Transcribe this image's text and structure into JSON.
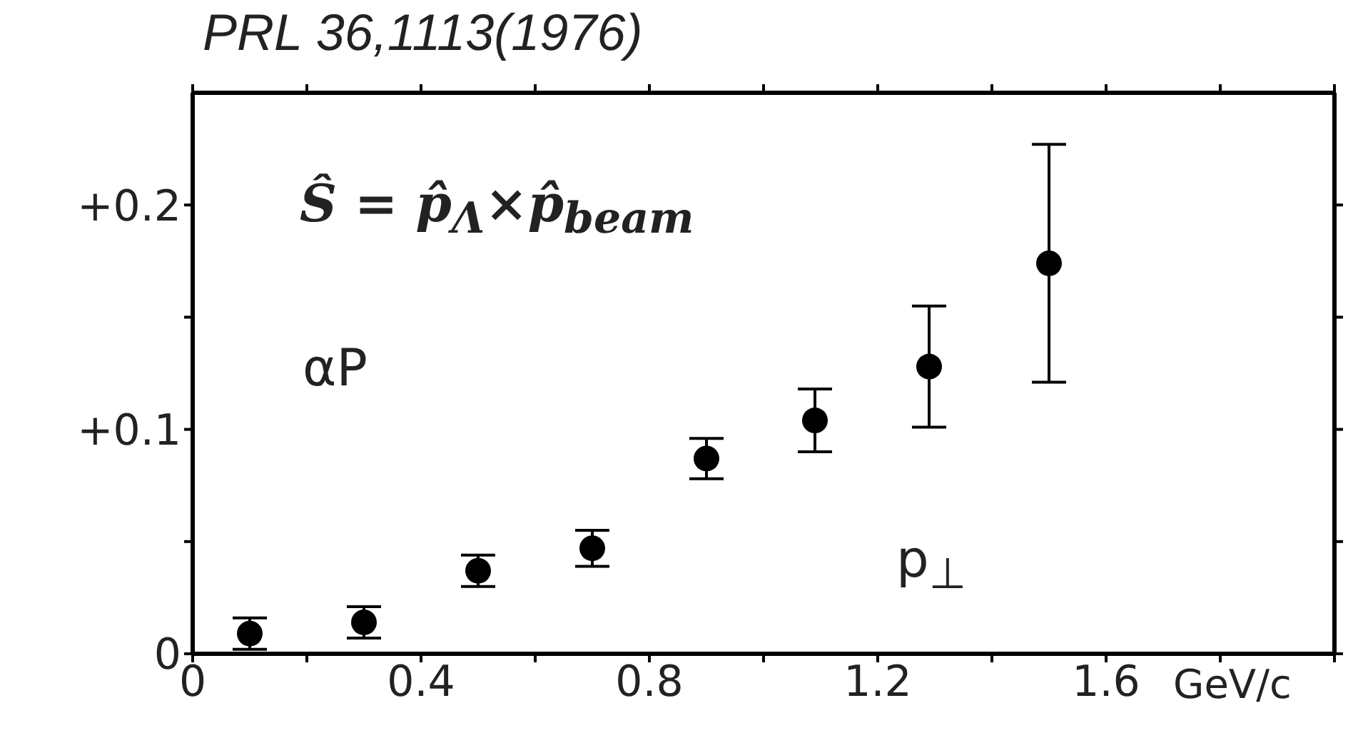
{
  "chart_data": {
    "type": "scatter",
    "title": "PRL 36,1113(1976)",
    "ylabel": "αP",
    "xlabel": "p$_{⊥}$",
    "annotations": [
      "Ŝ = p̂$_{Λ}$×p̂$_{beam}$",
      "GeV/c"
    ],
    "x": [
      0.1,
      0.3,
      0.5,
      0.7,
      0.9,
      1.09,
      1.29,
      1.5
    ],
    "values": [
      0.009,
      0.014,
      0.037,
      0.047,
      0.087,
      0.104,
      0.128,
      0.174
    ],
    "errors": [
      0.007,
      0.007,
      0.007,
      0.008,
      0.009,
      0.014,
      0.027,
      0.053
    ],
    "color": "#000000",
    "marker": "circle",
    "xlim": [
      0,
      2
    ],
    "ylim": [
      0,
      0.25
    ],
    "xticks": [
      0,
      {
        "value": 0.2,
        "label": null
      },
      0.4,
      {
        "value": 0.6,
        "label": null
      },
      0.8,
      {
        "value": 1.0,
        "label": null
      },
      1.2,
      {
        "value": 1.4,
        "label": null
      },
      1.6,
      {
        "value": 1.8,
        "label": null
      },
      {
        "value": 2.0,
        "label": null
      }
    ],
    "yticks": [
      0,
      {
        "value": 0.05,
        "label": null
      },
      {
        "value": 0.1,
        "label": "+0.1"
      },
      {
        "value": 0.15,
        "label": null
      },
      {
        "value": 0.2,
        "label": "+0.2"
      }
    ]
  }
}
